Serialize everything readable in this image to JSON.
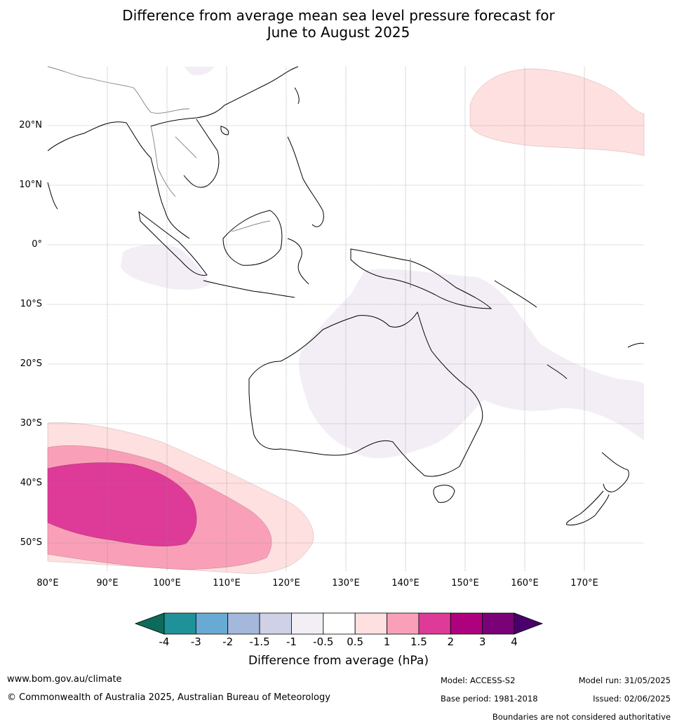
{
  "title_line1": "Difference from average mean sea level pressure forecast for",
  "title_line2": "June to August 2025",
  "lat_labels": [
    "20°N",
    "10°N",
    "0°",
    "10°S",
    "20°S",
    "30°S",
    "40°S",
    "50°S"
  ],
  "lon_labels": [
    "80°E",
    "90°E",
    "100°E",
    "110°E",
    "120°E",
    "130°E",
    "140°E",
    "150°E",
    "160°E",
    "170°E"
  ],
  "colorbar": {
    "ticks": [
      "-4",
      "-3",
      "-2",
      "-1.5",
      "-1",
      "-0.5",
      "0.5",
      "1",
      "1.5",
      "2",
      "3",
      "4"
    ],
    "colors": [
      "#0c6b5c",
      "#1f9198",
      "#68aad3",
      "#a3b8da",
      "#cfd2e6",
      "#f3eef6",
      "#ffffff",
      "#fde0df",
      "#f9a0b8",
      "#de3a98",
      "#ae017e",
      "#7a0177",
      "#49006a"
    ],
    "label": "Difference from average (hPa)"
  },
  "footer": {
    "url": "www.bom.gov.au/climate",
    "copyright": "© Commonwealth of Australia 2025, Australian Bureau of Meteorology",
    "model": "Model: ACCESS-S2",
    "base_period": "Base period: 1981-2018",
    "model_run": "Model run: 31/05/2025",
    "issued": "Issued: 02/06/2025",
    "disclaimer": "Boundaries are not considered authoritative"
  }
}
